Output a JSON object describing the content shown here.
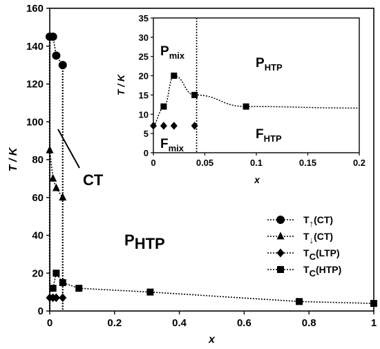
{
  "chart_data": [
    {
      "type": "line",
      "panel": "main",
      "xlabel": "x",
      "ylabel": "T / K",
      "xlim": [
        0,
        1
      ],
      "ylim": [
        0,
        160
      ],
      "xticks": [
        "0",
        "0.2",
        "0.4",
        "0.6",
        "0.8",
        "1"
      ],
      "yticks": [
        "0",
        "20",
        "40",
        "60",
        "80",
        "100",
        "120",
        "140",
        "160"
      ],
      "legend_position": "right",
      "series": [
        {
          "name": "T↑(CT)",
          "base": "T",
          "sub": "↑",
          "suffix": "(CT)",
          "marker": "circle",
          "points": [
            [
              0,
              145
            ],
            [
              0.01,
              145
            ],
            [
              0.02,
              135
            ],
            [
              0.04,
              130
            ]
          ]
        },
        {
          "name": "T↓(CT)",
          "base": "T",
          "sub": "↓",
          "suffix": "(CT)",
          "marker": "triangle",
          "points": [
            [
              0,
              85
            ],
            [
              0.01,
              70
            ],
            [
              0.02,
              65
            ],
            [
              0.04,
              60
            ]
          ]
        },
        {
          "name": "TC(LTP)",
          "base": "T",
          "sub": "C",
          "suffix": "(LTP)",
          "marker": "diamond",
          "points": [
            [
              0,
              7
            ],
            [
              0.01,
              7
            ],
            [
              0.02,
              7
            ],
            [
              0.04,
              7
            ]
          ]
        },
        {
          "name": "TC(HTP)",
          "base": "T",
          "sub": "C",
          "suffix": "(HTP)",
          "marker": "square",
          "points": [
            [
              0.01,
              12
            ],
            [
              0.02,
              20
            ],
            [
              0.04,
              15
            ],
            [
              0.09,
              12
            ],
            [
              0.31,
              10
            ],
            [
              0.77,
              5
            ],
            [
              1.0,
              4
            ]
          ]
        }
      ],
      "boundaries": [
        {
          "points": [
            [
              0,
              145
            ],
            [
              0,
              0
            ]
          ]
        },
        {
          "points": [
            [
              0.04,
              130
            ],
            [
              0.04,
              0
            ]
          ]
        }
      ],
      "annotations": {
        "ct": "CT",
        "phtp": {
          "base": "P",
          "sub": "HTP"
        }
      }
    },
    {
      "type": "line",
      "panel": "inset",
      "xlabel": "x",
      "ylabel": "T / K",
      "xlim": [
        0,
        0.2
      ],
      "ylim": [
        0,
        35
      ],
      "xticks": [
        "0",
        "0.05",
        "0.1",
        "0.15",
        "0.2"
      ],
      "yticks": [
        "0",
        "5",
        "10",
        "15",
        "20",
        "25",
        "30",
        "35"
      ],
      "vline_x": 0.042,
      "series": [
        {
          "name": "TC(HTP)",
          "marker": "square",
          "points": [
            [
              0.01,
              12
            ],
            [
              0.02,
              20
            ],
            [
              0.04,
              15
            ],
            [
              0.09,
              12
            ]
          ]
        },
        {
          "name": "TC(LTP)",
          "marker": "diamond",
          "points": [
            [
              0,
              7
            ],
            [
              0.01,
              7
            ],
            [
              0.02,
              7
            ],
            [
              0.04,
              7
            ]
          ]
        }
      ],
      "annotations": {
        "pmix": {
          "base": "P",
          "sub": "mix"
        },
        "phtp": {
          "base": "P",
          "sub": "HTP"
        },
        "fmix": {
          "base": "F",
          "sub": "mix"
        },
        "fhtp": {
          "base": "F",
          "sub": "HTP"
        }
      }
    }
  ]
}
